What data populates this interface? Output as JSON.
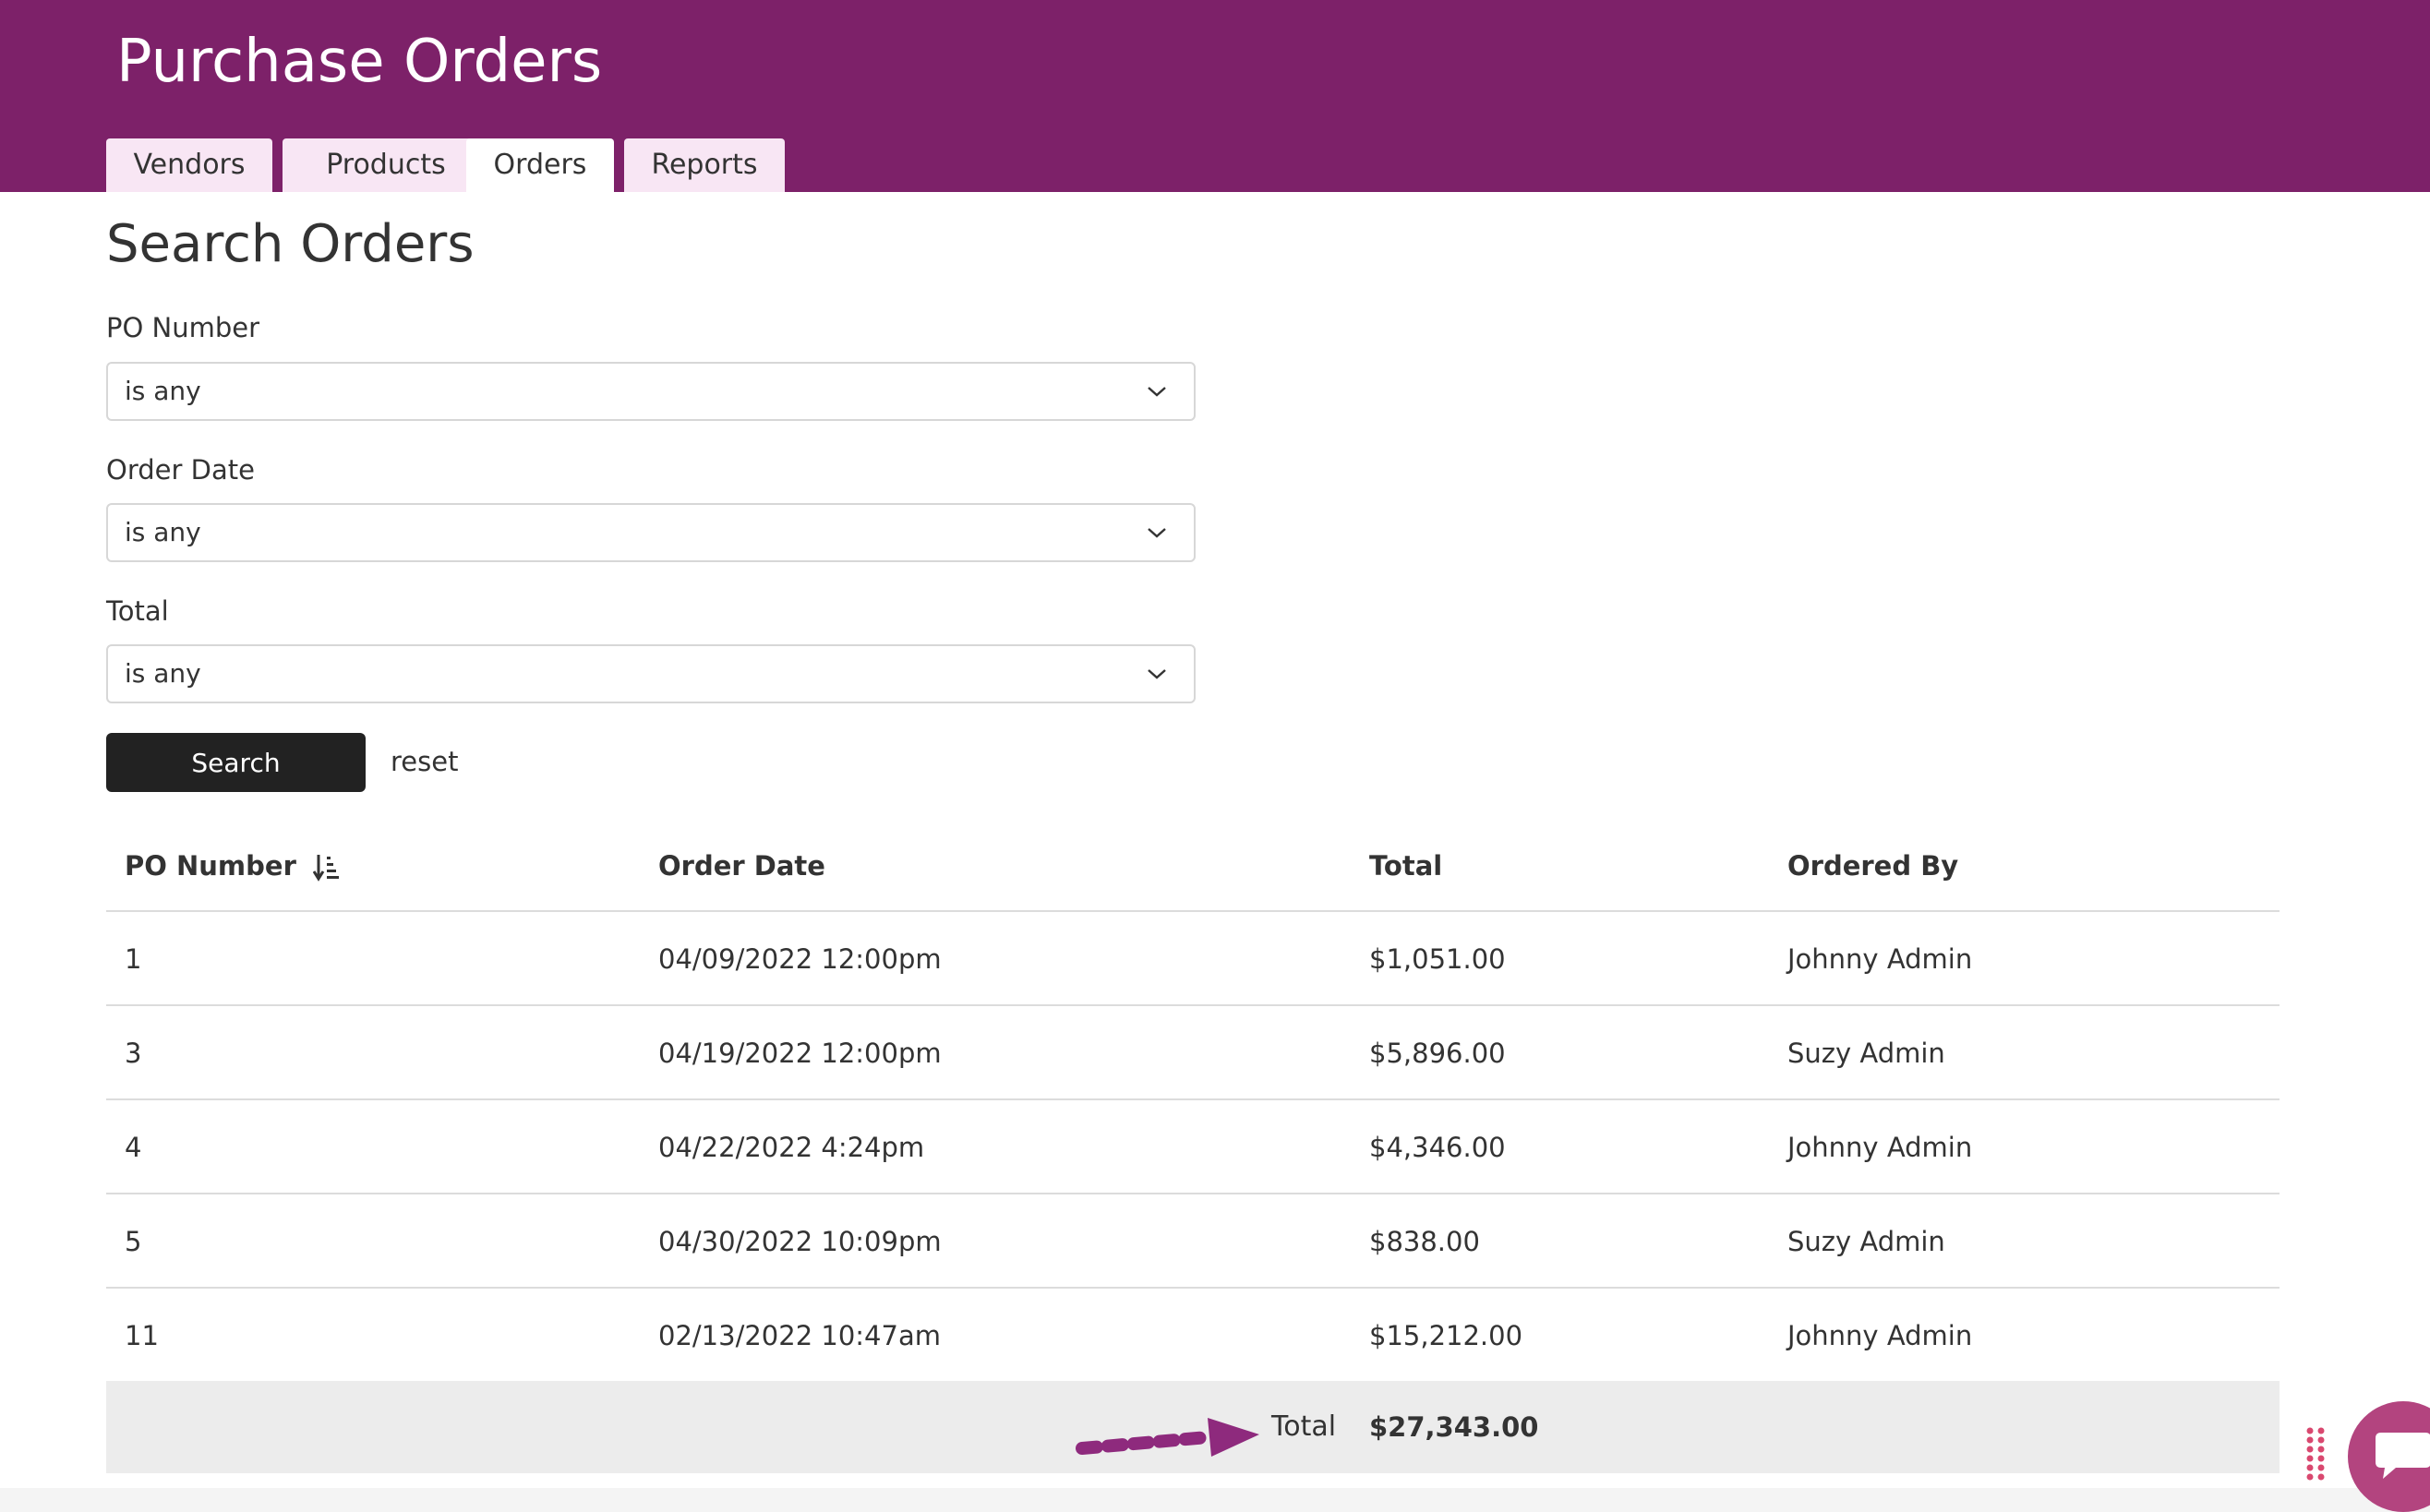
{
  "header": {
    "title": "Purchase Orders",
    "tabs": [
      {
        "label": "Vendors",
        "active": false
      },
      {
        "label": "Products",
        "active": false
      },
      {
        "label": "Orders",
        "active": true
      },
      {
        "label": "Reports",
        "active": false
      }
    ]
  },
  "search": {
    "title": "Search Orders",
    "fields": [
      {
        "label": "PO Number",
        "value": "is any"
      },
      {
        "label": "Order Date",
        "value": "is any"
      },
      {
        "label": "Total",
        "value": "is any"
      }
    ],
    "search_label": "Search",
    "reset_label": "reset"
  },
  "table": {
    "headers": [
      "PO Number",
      "Order Date",
      "Total",
      "Ordered By"
    ],
    "rows": [
      [
        "1",
        "04/09/2022 12:00pm",
        "$1,051.00",
        "Johnny Admin"
      ],
      [
        "3",
        "04/19/2022 12:00pm",
        "$5,896.00",
        "Suzy Admin"
      ],
      [
        "4",
        "04/22/2022 4:24pm",
        "$4,346.00",
        "Johnny Admin"
      ],
      [
        "5",
        "04/30/2022 10:09pm",
        "$838.00",
        "Suzy Admin"
      ],
      [
        "11",
        "02/13/2022 10:47am",
        "$15,212.00",
        "Johnny Admin"
      ]
    ],
    "footer": {
      "label": "Total",
      "value": "$27,343.00"
    }
  },
  "icons": {
    "sort": "sort-ascending-icon",
    "chevron": "chevron-down-icon",
    "annotation": "dotted-arrow-icon",
    "chat": "chat-bubble-icon",
    "drag": "drag-dots-icon"
  },
  "colors": {
    "brand": "#7d2169",
    "tab_bg": "#f8e6f4",
    "button": "#222222",
    "footer_bg": "#ececec",
    "annotation": "#8e2a7d",
    "chat": "#b3447f"
  }
}
